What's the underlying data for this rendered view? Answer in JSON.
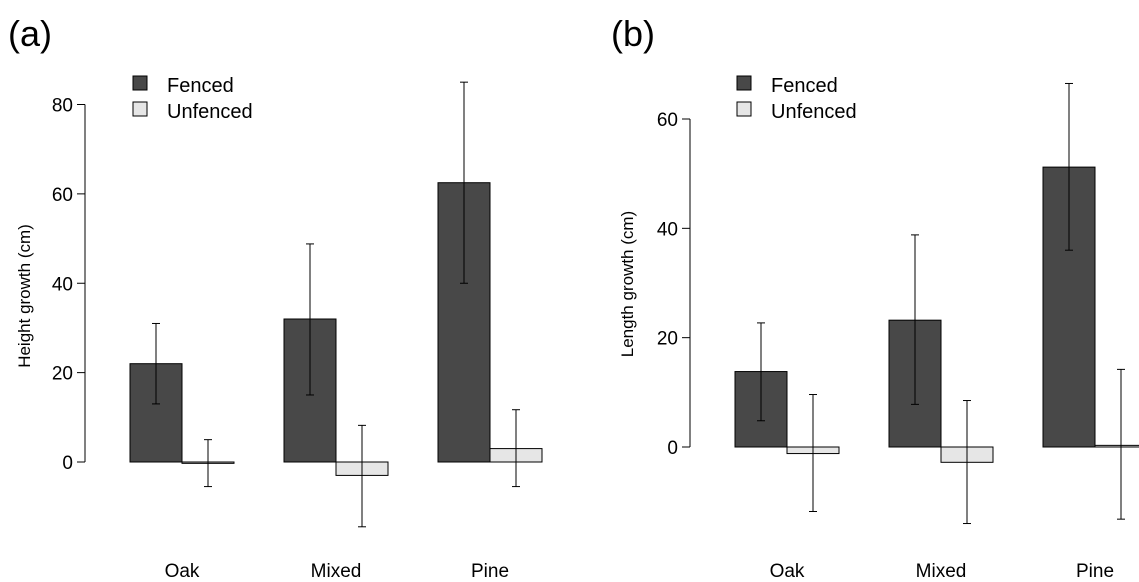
{
  "chart_data": [
    {
      "type": "bar",
      "panel_label": "(a)",
      "ylabel": "Height growth (cm)",
      "categories": [
        "Oak",
        "Mixed",
        "Pine"
      ],
      "yticks": [
        0,
        20,
        40,
        60,
        80
      ],
      "legend": {
        "placement": "top-left",
        "entries": [
          "Fenced",
          "Unfenced"
        ]
      },
      "grid": false,
      "series": [
        {
          "name": "Fenced",
          "color": "#484848",
          "values": [
            22,
            32,
            62.5
          ],
          "err_low": [
            13,
            15,
            40
          ],
          "err_high": [
            31,
            48.8,
            85
          ]
        },
        {
          "name": "Unfenced",
          "color": "#e6e6e6",
          "values": [
            -0.3,
            -3,
            3
          ],
          "err_low": [
            -5.5,
            -14.5,
            -5.5
          ],
          "err_high": [
            5,
            8.2,
            11.7
          ]
        }
      ]
    },
    {
      "type": "bar",
      "panel_label": "(b)",
      "ylabel": "Length growth (cm)",
      "categories": [
        "Oak",
        "Mixed",
        "Pine"
      ],
      "yticks": [
        0,
        20,
        40,
        60
      ],
      "legend": {
        "placement": "top-left",
        "entries": [
          "Fenced",
          "Unfenced"
        ]
      },
      "grid": false,
      "series": [
        {
          "name": "Fenced",
          "color": "#484848",
          "values": [
            13.8,
            23.2,
            51.2
          ],
          "err_low": [
            4.8,
            7.8,
            36
          ],
          "err_high": [
            22.7,
            38.8,
            66.5
          ]
        },
        {
          "name": "Unfenced",
          "color": "#e6e6e6",
          "values": [
            -1.2,
            -2.8,
            0.3
          ],
          "err_low": [
            -11.8,
            -14,
            -13.2
          ],
          "err_high": [
            9.6,
            8.5,
            14.2
          ]
        }
      ]
    }
  ]
}
